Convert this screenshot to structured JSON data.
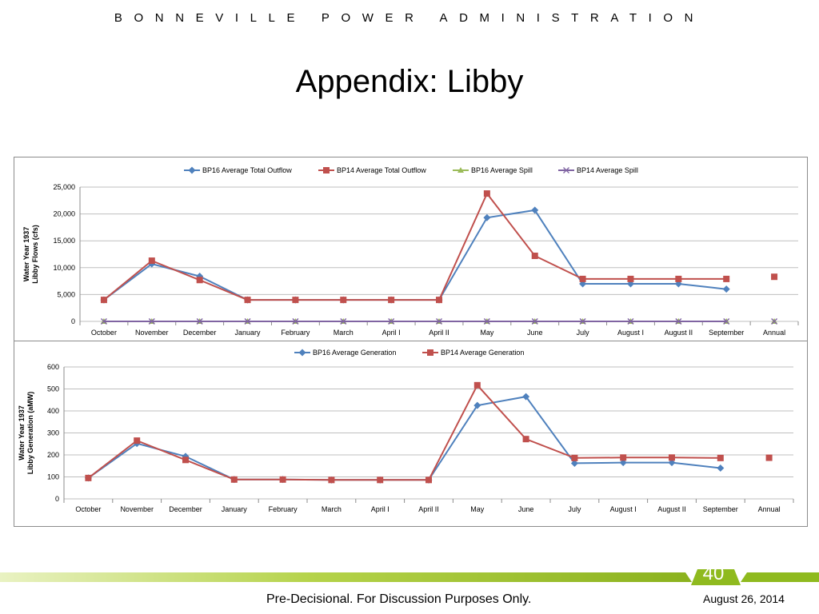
{
  "header": {
    "organization": "BONNEVILLE POWER ADMINISTRATION",
    "title": "Appendix:  Libby"
  },
  "footer": {
    "page_number": "40",
    "disclaimer": "Pre-Decisional.  For Discussion Purposes Only.",
    "date": "August 26, 2014"
  },
  "chart_data": [
    {
      "type": "line",
      "title": "",
      "xlabel": "",
      "ylabel": "Water Year 1937 Libby Flows (cfs)",
      "ylim": [
        0,
        25000
      ],
      "yticks": [
        0,
        5000,
        10000,
        15000,
        20000,
        25000
      ],
      "ytick_labels": [
        "0",
        "5,000",
        "10,000",
        "15,000",
        "20,000",
        "25,000"
      ],
      "grid": true,
      "legend": "top",
      "categories": [
        "October",
        "November",
        "December",
        "January",
        "February",
        "March",
        "April I",
        "April II",
        "May",
        "June",
        "July",
        "August I",
        "August II",
        "September",
        "Annual"
      ],
      "series": [
        {
          "name": "BP16 Average Total Outflow",
          "color": "#4f81bd",
          "marker": "diamond",
          "values": [
            4000,
            10700,
            8400,
            4000,
            4000,
            4000,
            4000,
            4000,
            19300,
            20700,
            7000,
            7000,
            7000,
            6000,
            null
          ]
        },
        {
          "name": "BP14 Average Total Outflow",
          "color": "#c0504d",
          "marker": "square",
          "values": [
            4000,
            11300,
            7700,
            4000,
            4000,
            4000,
            4000,
            4000,
            23800,
            12200,
            7900,
            7900,
            7900,
            7900,
            8300
          ]
        },
        {
          "name": "BP16 Average Spill",
          "color": "#9bbb59",
          "marker": "triangle",
          "values": [
            0,
            0,
            0,
            0,
            0,
            0,
            0,
            0,
            0,
            0,
            0,
            0,
            0,
            0,
            0
          ]
        },
        {
          "name": "BP14 Average Spill",
          "color": "#8064a2",
          "marker": "x",
          "values": [
            0,
            0,
            0,
            0,
            0,
            0,
            0,
            0,
            0,
            0,
            0,
            0,
            0,
            0,
            0
          ]
        }
      ]
    },
    {
      "type": "line",
      "title": "",
      "xlabel": "",
      "ylabel": "Water Year 1937 Libby Generation (aMW)",
      "ylim": [
        0,
        600
      ],
      "yticks": [
        0,
        100,
        200,
        300,
        400,
        500,
        600
      ],
      "ytick_labels": [
        "0",
        "100",
        "200",
        "300",
        "400",
        "500",
        "600"
      ],
      "grid": true,
      "legend": "top",
      "categories": [
        "October",
        "November",
        "December",
        "January",
        "February",
        "March",
        "April I",
        "April II",
        "May",
        "June",
        "July",
        "August I",
        "August II",
        "September",
        "Annual"
      ],
      "series": [
        {
          "name": "BP16 Average Generation",
          "color": "#4f81bd",
          "marker": "diamond",
          "values": [
            95,
            252,
            193,
            88,
            88,
            86,
            86,
            86,
            425,
            465,
            162,
            165,
            165,
            140,
            null
          ]
        },
        {
          "name": "BP14 Average Generation",
          "color": "#c0504d",
          "marker": "square",
          "values": [
            95,
            265,
            177,
            88,
            88,
            86,
            86,
            86,
            517,
            272,
            186,
            188,
            188,
            186,
            187
          ]
        }
      ]
    }
  ]
}
